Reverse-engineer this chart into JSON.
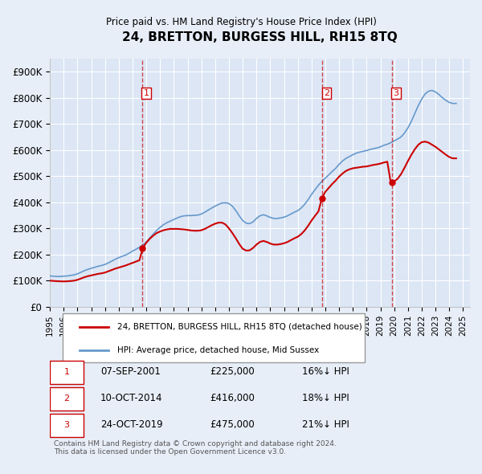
{
  "title": "24, BRETTON, BURGESS HILL, RH15 8TQ",
  "subtitle": "Price paid vs. HM Land Registry's House Price Index (HPI)",
  "ylabel_ticks": [
    "£0",
    "£100K",
    "£200K",
    "£300K",
    "£400K",
    "£500K",
    "£600K",
    "£700K",
    "£800K",
    "£900K"
  ],
  "ytick_vals": [
    0,
    100000,
    200000,
    300000,
    400000,
    500000,
    600000,
    700000,
    800000,
    900000
  ],
  "ylim": [
    0,
    950000
  ],
  "xlim_start": 1995.0,
  "xlim_end": 2025.5,
  "background_color": "#e8eef8",
  "plot_bg_color": "#dce6f5",
  "grid_color": "#ffffff",
  "hpi_color": "#6699cc",
  "price_color": "#cc0000",
  "sales": [
    {
      "date": "07-SEP-2001",
      "x": 2001.69,
      "price": 225000,
      "label": "1",
      "pct": "16%↓ HPI"
    },
    {
      "date": "10-OCT-2014",
      "x": 2014.78,
      "price": 416000,
      "label": "2",
      "pct": "18%↓ HPI"
    },
    {
      "date": "24-OCT-2019",
      "x": 2019.82,
      "price": 475000,
      "label": "3",
      "pct": "21%↓ HPI"
    }
  ],
  "legend_line1": "24, BRETTON, BURGESS HILL, RH15 8TQ (detached house)",
  "legend_line2": "HPI: Average price, detached house, Mid Sussex",
  "footer": "Contains HM Land Registry data © Crown copyright and database right 2024.\nThis data is licensed under the Open Government Licence v3.0.",
  "hpi_data_x": [
    1995.0,
    1995.25,
    1995.5,
    1995.75,
    1996.0,
    1996.25,
    1996.5,
    1996.75,
    1997.0,
    1997.25,
    1997.5,
    1997.75,
    1998.0,
    1998.25,
    1998.5,
    1998.75,
    1999.0,
    1999.25,
    1999.5,
    1999.75,
    2000.0,
    2000.25,
    2000.5,
    2000.75,
    2001.0,
    2001.25,
    2001.5,
    2001.75,
    2002.0,
    2002.25,
    2002.5,
    2002.75,
    2003.0,
    2003.25,
    2003.5,
    2003.75,
    2004.0,
    2004.25,
    2004.5,
    2004.75,
    2005.0,
    2005.25,
    2005.5,
    2005.75,
    2006.0,
    2006.25,
    2006.5,
    2006.75,
    2007.0,
    2007.25,
    2007.5,
    2007.75,
    2008.0,
    2008.25,
    2008.5,
    2008.75,
    2009.0,
    2009.25,
    2009.5,
    2009.75,
    2010.0,
    2010.25,
    2010.5,
    2010.75,
    2011.0,
    2011.25,
    2011.5,
    2011.75,
    2012.0,
    2012.25,
    2012.5,
    2012.75,
    2013.0,
    2013.25,
    2013.5,
    2013.75,
    2014.0,
    2014.25,
    2014.5,
    2014.75,
    2015.0,
    2015.25,
    2015.5,
    2015.75,
    2016.0,
    2016.25,
    2016.5,
    2016.75,
    2017.0,
    2017.25,
    2017.5,
    2017.75,
    2018.0,
    2018.25,
    2018.5,
    2018.75,
    2019.0,
    2019.25,
    2019.5,
    2019.75,
    2020.0,
    2020.25,
    2020.5,
    2020.75,
    2021.0,
    2021.25,
    2021.5,
    2021.75,
    2022.0,
    2022.25,
    2022.5,
    2022.75,
    2023.0,
    2023.25,
    2023.5,
    2023.75,
    2024.0,
    2024.25,
    2024.5
  ],
  "hpi_data_y": [
    118000,
    117000,
    116000,
    116000,
    117000,
    118000,
    120000,
    122000,
    126000,
    132000,
    138000,
    143000,
    147000,
    151000,
    155000,
    158000,
    162000,
    168000,
    175000,
    182000,
    188000,
    193000,
    198000,
    205000,
    213000,
    220000,
    228000,
    237000,
    248000,
    263000,
    278000,
    292000,
    304000,
    314000,
    322000,
    328000,
    334000,
    340000,
    345000,
    348000,
    349000,
    349000,
    350000,
    351000,
    355000,
    362000,
    370000,
    378000,
    385000,
    392000,
    397000,
    398000,
    395000,
    385000,
    368000,
    348000,
    330000,
    320000,
    318000,
    325000,
    338000,
    348000,
    352000,
    348000,
    342000,
    338000,
    338000,
    340000,
    343000,
    348000,
    355000,
    362000,
    368000,
    378000,
    392000,
    410000,
    430000,
    448000,
    465000,
    480000,
    492000,
    505000,
    518000,
    530000,
    545000,
    558000,
    568000,
    575000,
    582000,
    588000,
    592000,
    595000,
    598000,
    602000,
    605000,
    608000,
    612000,
    618000,
    622000,
    628000,
    635000,
    642000,
    650000,
    665000,
    685000,
    710000,
    740000,
    770000,
    795000,
    815000,
    825000,
    828000,
    822000,
    812000,
    800000,
    790000,
    782000,
    778000,
    778000
  ],
  "price_data_x": [
    1995.0,
    1995.25,
    1995.5,
    1995.75,
    1996.0,
    1996.25,
    1996.5,
    1996.75,
    1997.0,
    1997.25,
    1997.5,
    1997.75,
    1998.0,
    1998.25,
    1998.5,
    1998.75,
    1999.0,
    1999.25,
    1999.5,
    1999.75,
    2000.0,
    2000.25,
    2000.5,
    2000.75,
    2001.0,
    2001.25,
    2001.5,
    2001.75,
    2002.0,
    2002.25,
    2002.5,
    2002.75,
    2003.0,
    2003.25,
    2003.5,
    2003.75,
    2004.0,
    2004.25,
    2004.5,
    2004.75,
    2005.0,
    2005.25,
    2005.5,
    2005.75,
    2006.0,
    2006.25,
    2006.5,
    2006.75,
    2007.0,
    2007.25,
    2007.5,
    2007.75,
    2008.0,
    2008.25,
    2008.5,
    2008.75,
    2009.0,
    2009.25,
    2009.5,
    2009.75,
    2010.0,
    2010.25,
    2010.5,
    2010.75,
    2011.0,
    2011.25,
    2011.5,
    2011.75,
    2012.0,
    2012.25,
    2012.5,
    2012.75,
    2013.0,
    2013.25,
    2013.5,
    2013.75,
    2014.0,
    2014.25,
    2014.5,
    2014.75,
    2015.0,
    2015.25,
    2015.5,
    2015.75,
    2016.0,
    2016.25,
    2016.5,
    2016.75,
    2017.0,
    2017.25,
    2017.5,
    2017.75,
    2018.0,
    2018.25,
    2018.5,
    2018.75,
    2019.0,
    2019.25,
    2019.5,
    2019.75,
    2020.0,
    2020.25,
    2020.5,
    2020.75,
    2021.0,
    2021.25,
    2021.5,
    2021.75,
    2022.0,
    2022.25,
    2022.5,
    2022.75,
    2023.0,
    2023.25,
    2023.5,
    2023.75,
    2024.0,
    2024.25,
    2024.5
  ],
  "price_data_y": [
    100000,
    99000,
    98000,
    97500,
    97000,
    97500,
    98500,
    100000,
    103000,
    108000,
    113000,
    117000,
    120000,
    123000,
    126000,
    128000,
    131000,
    136000,
    141000,
    146000,
    150000,
    154000,
    158000,
    163000,
    168000,
    173000,
    178000,
    225000,
    245000,
    260000,
    272000,
    282000,
    288000,
    293000,
    296000,
    298000,
    298000,
    298000,
    297000,
    296000,
    294000,
    292000,
    291000,
    291000,
    293000,
    298000,
    305000,
    312000,
    318000,
    322000,
    322000,
    315000,
    300000,
    282000,
    262000,
    240000,
    222000,
    215000,
    216000,
    225000,
    238000,
    248000,
    252000,
    248000,
    242000,
    238000,
    238000,
    240000,
    243000,
    248000,
    255000,
    262000,
    268000,
    278000,
    292000,
    310000,
    330000,
    348000,
    365000,
    416000,
    440000,
    455000,
    470000,
    483000,
    498000,
    510000,
    520000,
    526000,
    530000,
    532000,
    534000,
    536000,
    537000,
    540000,
    543000,
    545000,
    548000,
    552000,
    555000,
    475000,
    480000,
    490000,
    508000,
    532000,
    558000,
    582000,
    603000,
    620000,
    630000,
    632000,
    628000,
    620000,
    612000,
    602000,
    592000,
    582000,
    573000,
    568000,
    568000
  ],
  "xtick_years": [
    1995,
    1996,
    1997,
    1998,
    1999,
    2000,
    2001,
    2002,
    2003,
    2004,
    2005,
    2006,
    2007,
    2008,
    2009,
    2010,
    2011,
    2012,
    2013,
    2014,
    2015,
    2016,
    2017,
    2018,
    2019,
    2020,
    2021,
    2022,
    2023,
    2024,
    2025
  ]
}
